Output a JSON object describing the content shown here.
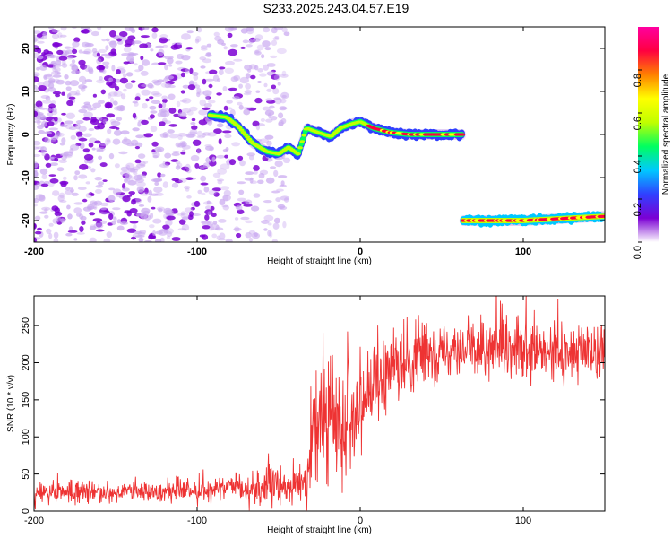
{
  "title": "S233.2025.243.04.57.E19",
  "chart_data": [
    {
      "type": "heatmap",
      "xlabel": "Height of straight line (km)",
      "ylabel": "Frequency (Hz)",
      "xlim": [
        -200,
        150
      ],
      "ylim": [
        -25,
        25
      ],
      "x_ticks": [
        "-200",
        "-100",
        "0",
        "100"
      ],
      "x_tick_values": [
        -200,
        -100,
        0,
        100
      ],
      "y_ticks": [
        "20",
        "10",
        "0",
        "-10",
        "-20"
      ],
      "y_tick_values": [
        20,
        10,
        0,
        -10,
        -20
      ],
      "colorbar": {
        "label": "Normalized spectral amplitude",
        "range": [
          0,
          1
        ],
        "ticks": [
          "0.0",
          "0.2",
          "0.4",
          "0.6",
          "0.8"
        ],
        "tick_values": [
          0.0,
          0.2,
          0.4,
          0.6,
          0.8
        ],
        "colormap": [
          "#ffffff",
          "#7b00d4",
          "#3040ff",
          "#00c8ff",
          "#00ff60",
          "#c0ff00",
          "#ffff00",
          "#ff8000",
          "#ff0040",
          "#ff00a0"
        ]
      },
      "features": [
        {
          "kind": "noise",
          "x_range": [
            -200,
            -45
          ],
          "y_range": [
            -25,
            25
          ],
          "amplitude": 0.15
        },
        {
          "kind": "track",
          "points": [
            [
              -92,
              4.5
            ],
            [
              -82,
              4
            ],
            [
              -75,
              2
            ],
            [
              -66,
              -2
            ],
            [
              -57,
              -4
            ],
            [
              -50,
              -4.5
            ],
            [
              -44,
              -3
            ],
            [
              -38,
              -4.5
            ],
            [
              -33,
              1.5
            ],
            [
              -26,
              0.5
            ],
            [
              -18,
              -0.5
            ],
            [
              -12,
              1.5
            ],
            [
              -5,
              2.5
            ],
            [
              0,
              3
            ],
            [
              8,
              1.5
            ],
            [
              18,
              0.5
            ],
            [
              30,
              0
            ],
            [
              50,
              0
            ],
            [
              63,
              0
            ]
          ],
          "amplitude": 0.5
        },
        {
          "kind": "track",
          "points": [
            [
              -52,
              13
            ],
            [
              -66,
              9
            ],
            [
              -78,
              7
            ]
          ],
          "amplitude": 0.25
        },
        {
          "kind": "track",
          "points": [
            [
              63,
              -20
            ],
            [
              100,
              -20
            ],
            [
              150,
              -19
            ]
          ],
          "amplitude": 0.85
        }
      ]
    },
    {
      "type": "line",
      "xlabel": "Height of straight line (km)",
      "ylabel": "SNR (10 * v/v)",
      "xlim": [
        -200,
        150
      ],
      "ylim": [
        0,
        290
      ],
      "x_ticks": [
        "-200",
        "-100",
        "0",
        "100"
      ],
      "x_tick_values": [
        -200,
        -100,
        0,
        100
      ],
      "y_ticks": [
        "0",
        "50",
        "100",
        "150",
        "200",
        "250"
      ],
      "y_tick_values": [
        0,
        50,
        100,
        150,
        200,
        250
      ],
      "series": [
        {
          "color": "#ee3333",
          "trend": [
            [
              -200,
              24
            ],
            [
              -120,
              26
            ],
            [
              -70,
              30
            ],
            [
              -40,
              35
            ],
            [
              -33,
              40
            ],
            [
              -28,
              110
            ],
            [
              -20,
              120
            ],
            [
              -10,
              120
            ],
            [
              0,
              150
            ],
            [
              20,
              185
            ],
            [
              35,
              210
            ],
            [
              60,
              220
            ],
            [
              100,
              210
            ],
            [
              130,
              212
            ],
            [
              150,
              220
            ]
          ],
          "noise_amplitude": [
            [
              -200,
              16
            ],
            [
              -80,
              18
            ],
            [
              -60,
              30
            ],
            [
              -35,
              25
            ],
            [
              -25,
              90
            ],
            [
              0,
              70
            ],
            [
              30,
              45
            ],
            [
              150,
              45
            ]
          ]
        }
      ]
    }
  ]
}
